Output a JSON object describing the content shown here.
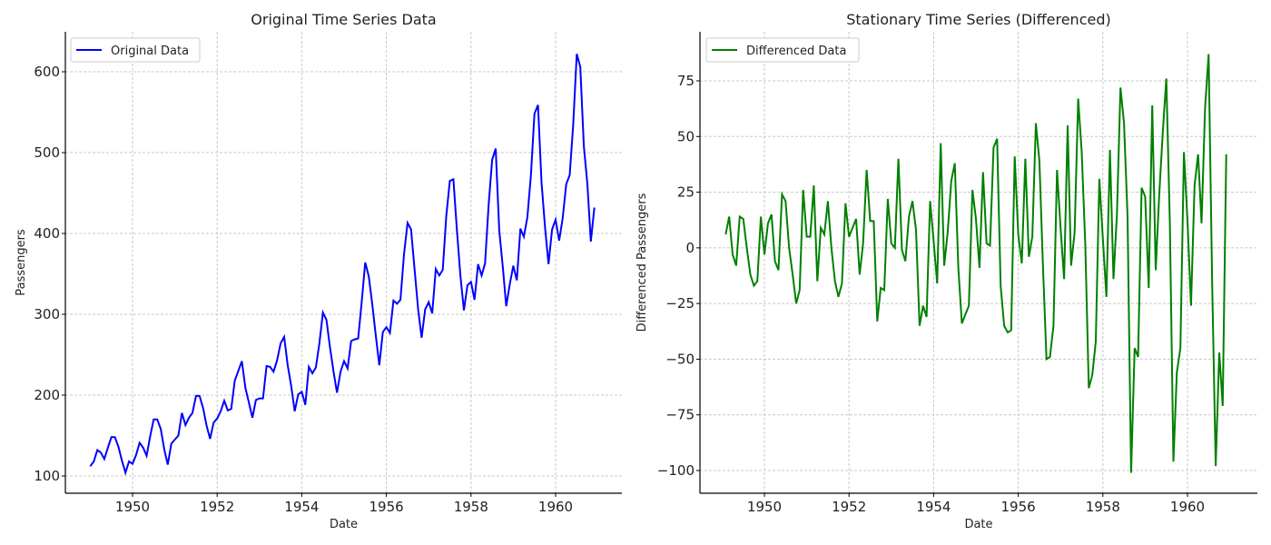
{
  "figure": {
    "background": "#ffffff"
  },
  "chart_data": [
    {
      "type": "line",
      "title": "Original Time Series Data",
      "xlabel": "Date",
      "ylabel": "Passengers",
      "x_start": "1949-01",
      "x_step": "month",
      "x_ticks": [
        "1950",
        "1952",
        "1954",
        "1956",
        "1958",
        "1960"
      ],
      "y_ticks": [
        "100",
        "200",
        "300",
        "400",
        "500",
        "600"
      ],
      "ylim": [
        78,
        649
      ],
      "xlim": [
        1948.4,
        1961.6
      ],
      "grid": true,
      "legend_position": "upper left",
      "series": [
        {
          "name": "Original Data",
          "color": "#0000ff",
          "values": [
            112,
            118,
            132,
            129,
            121,
            135,
            148,
            148,
            136,
            119,
            104,
            118,
            115,
            126,
            141,
            135,
            125,
            149,
            170,
            170,
            158,
            133,
            114,
            140,
            145,
            150,
            178,
            163,
            172,
            178,
            199,
            199,
            184,
            162,
            146,
            166,
            171,
            180,
            193,
            181,
            183,
            218,
            230,
            242,
            209,
            191,
            172,
            194,
            196,
            196,
            236,
            235,
            229,
            243,
            264,
            272,
            237,
            211,
            180,
            201,
            204,
            188,
            235,
            227,
            234,
            264,
            302,
            293,
            259,
            229,
            203,
            229,
            242,
            233,
            267,
            269,
            270,
            315,
            364,
            347,
            312,
            274,
            237,
            278,
            284,
            277,
            317,
            313,
            318,
            374,
            413,
            405,
            355,
            306,
            271,
            306,
            315,
            301,
            356,
            348,
            355,
            422,
            465,
            467,
            404,
            347,
            305,
            336,
            340,
            318,
            362,
            348,
            363,
            435,
            491,
            505,
            404,
            359,
            310,
            337,
            360,
            342,
            406,
            396,
            420,
            472,
            548,
            559,
            463,
            407,
            362,
            405,
            417,
            391,
            419,
            461,
            472,
            535,
            622,
            606,
            508,
            461,
            390,
            432
          ]
        }
      ]
    },
    {
      "type": "line",
      "title": "Stationary Time Series (Differenced)",
      "xlabel": "Date",
      "ylabel": "Differenced Passengers",
      "x_start": "1949-02",
      "x_step": "month",
      "x_ticks": [
        "1950",
        "1952",
        "1954",
        "1956",
        "1958",
        "1960"
      ],
      "y_ticks": [
        "75",
        "50",
        "25",
        "0",
        "−25",
        "−50",
        "−75",
        "−100"
      ],
      "ylim": [
        -111,
        96
      ],
      "xlim": [
        1948.4,
        1961.6
      ],
      "grid": true,
      "legend_position": "upper left",
      "series": [
        {
          "name": "Differenced Data",
          "color": "#008000",
          "values": [
            6,
            14,
            -3,
            -8,
            14,
            13,
            0,
            -12,
            -17,
            -15,
            14,
            -3,
            11,
            15,
            -6,
            -10,
            24,
            21,
            0,
            -12,
            -25,
            -19,
            26,
            5,
            5,
            28,
            -15,
            9,
            6,
            21,
            0,
            -15,
            -22,
            -16,
            20,
            5,
            9,
            13,
            -12,
            2,
            35,
            12,
            12,
            -33,
            -18,
            -19,
            22,
            2,
            0,
            40,
            -1,
            -6,
            14,
            21,
            8,
            -35,
            -26,
            -31,
            21,
            3,
            -16,
            47,
            -8,
            7,
            30,
            38,
            -9,
            -34,
            -30,
            -26,
            26,
            13,
            -9,
            34,
            2,
            1,
            45,
            49,
            -17,
            -35,
            -38,
            -37,
            41,
            6,
            -7,
            40,
            -4,
            5,
            56,
            39,
            -8,
            -50,
            -49,
            -35,
            35,
            9,
            -14,
            55,
            -8,
            7,
            67,
            43,
            2,
            -63,
            -57,
            -42,
            31,
            4,
            -22,
            44,
            -14,
            15,
            72,
            56,
            14,
            -101,
            -45,
            -49,
            27,
            23,
            -18,
            64,
            -10,
            24,
            52,
            76,
            11,
            -96,
            -56,
            -45,
            43,
            12,
            -26,
            28,
            42,
            11,
            63,
            87,
            -16,
            -98,
            -47,
            -71,
            42
          ]
        }
      ]
    }
  ]
}
